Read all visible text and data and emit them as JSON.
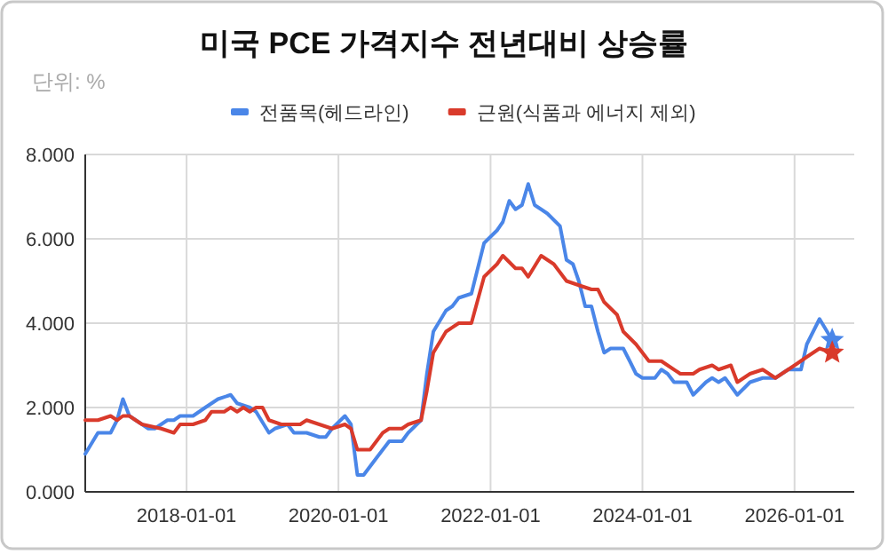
{
  "chart_data": {
    "type": "line",
    "title": "미국 PCE 가격지수 전년대비 상승률",
    "subtitle": "단위: %",
    "series": [
      {
        "name": "전품목(헤드라인)",
        "color": "#4a86e8",
        "x": [
          "2016-09",
          "2016-11",
          "2017-01",
          "2017-02",
          "2017-03",
          "2017-04",
          "2017-06",
          "2017-07",
          "2017-08",
          "2017-10",
          "2017-11",
          "2017-12",
          "2018-02",
          "2018-04",
          "2018-06",
          "2018-08",
          "2018-09",
          "2018-11",
          "2018-12",
          "2019-02",
          "2019-03",
          "2019-05",
          "2019-06",
          "2019-08",
          "2019-10",
          "2019-11",
          "2019-12",
          "2020-02",
          "2020-03",
          "2020-04",
          "2020-05",
          "2020-07",
          "2020-09",
          "2020-11",
          "2020-12",
          "2021-02",
          "2021-03",
          "2021-04",
          "2021-06",
          "2021-07",
          "2021-08",
          "2021-10",
          "2021-12",
          "2022-02",
          "2022-03",
          "2022-04",
          "2022-05",
          "2022-06",
          "2022-07",
          "2022-08",
          "2022-09",
          "2022-10",
          "2022-12",
          "2023-01",
          "2023-02",
          "2023-03",
          "2023-04",
          "2023-05",
          "2023-06",
          "2023-07",
          "2023-08",
          "2023-10",
          "2023-11",
          "2023-12",
          "2024-01",
          "2024-03",
          "2024-04",
          "2024-05",
          "2024-06",
          "2024-08",
          "2024-09",
          "2024-11",
          "2024-12",
          "2025-01",
          "2025-02",
          "2025-04",
          "2025-06",
          "2025-08",
          "2025-10",
          "2025-12",
          "2026-02",
          "2026-03",
          "2026-05",
          "2026-07"
        ],
        "values": [
          0.9,
          1.4,
          1.4,
          1.7,
          2.2,
          1.8,
          1.6,
          1.5,
          1.5,
          1.7,
          1.7,
          1.8,
          1.8,
          2.0,
          2.2,
          2.3,
          2.1,
          2.0,
          1.9,
          1.4,
          1.5,
          1.6,
          1.4,
          1.4,
          1.3,
          1.3,
          1.5,
          1.8,
          1.6,
          0.4,
          0.4,
          0.8,
          1.2,
          1.2,
          1.4,
          1.7,
          2.8,
          3.8,
          4.3,
          4.4,
          4.6,
          4.7,
          5.9,
          6.2,
          6.4,
          6.9,
          6.7,
          6.8,
          7.3,
          6.8,
          6.7,
          6.6,
          6.3,
          5.5,
          5.4,
          5.0,
          4.4,
          4.4,
          3.8,
          3.3,
          3.4,
          3.4,
          3.1,
          2.8,
          2.7,
          2.7,
          2.9,
          2.8,
          2.6,
          2.6,
          2.3,
          2.6,
          2.7,
          2.6,
          2.7,
          2.3,
          2.6,
          2.7,
          2.7,
          2.9,
          2.9,
          3.5,
          4.1,
          3.6
        ]
      },
      {
        "type": "scatter",
        "color": "#4a86e8",
        "marker": "star",
        "x": [
          "2026-07"
        ],
        "values": [
          3.6
        ]
      },
      {
        "type": "scatter",
        "color": "#d93a2b",
        "marker": "star",
        "x": [
          "2026-07"
        ],
        "values": [
          3.3
        ]
      },
      {
        "name": "근원(식품과 에너지 제외)",
        "color": "#d93a2b",
        "x": [
          "2016-09",
          "2016-11",
          "2017-01",
          "2017-02",
          "2017-03",
          "2017-04",
          "2017-05",
          "2017-06",
          "2017-09",
          "2017-11",
          "2017-12",
          "2018-02",
          "2018-04",
          "2018-05",
          "2018-07",
          "2018-08",
          "2018-09",
          "2018-10",
          "2018-11",
          "2018-12",
          "2019-01",
          "2019-02",
          "2019-04",
          "2019-05",
          "2019-07",
          "2019-08",
          "2019-10",
          "2019-12",
          "2020-02",
          "2020-03",
          "2020-04",
          "2020-06",
          "2020-08",
          "2020-09",
          "2020-11",
          "2020-12",
          "2021-02",
          "2021-03",
          "2021-04",
          "2021-06",
          "2021-08",
          "2021-10",
          "2021-12",
          "2022-02",
          "2022-03",
          "2022-05",
          "2022-06",
          "2022-07",
          "2022-09",
          "2022-11",
          "2023-01",
          "2023-03",
          "2023-05",
          "2023-06",
          "2023-07",
          "2023-09",
          "2023-10",
          "2023-12",
          "2024-02",
          "2024-03",
          "2024-04",
          "2024-05",
          "2024-07",
          "2024-09",
          "2024-10",
          "2024-12",
          "2025-01",
          "2025-03",
          "2025-04",
          "2025-06",
          "2025-08",
          "2025-10",
          "2026-01",
          "2026-03",
          "2026-05",
          "2026-07"
        ],
        "values": [
          1.7,
          1.7,
          1.8,
          1.7,
          1.8,
          1.8,
          1.7,
          1.6,
          1.5,
          1.4,
          1.6,
          1.6,
          1.7,
          1.9,
          1.9,
          2.0,
          1.9,
          2.0,
          1.9,
          2.0,
          2.0,
          1.7,
          1.6,
          1.6,
          1.6,
          1.7,
          1.6,
          1.5,
          1.6,
          1.5,
          1.0,
          1.0,
          1.4,
          1.5,
          1.5,
          1.6,
          1.7,
          2.4,
          3.3,
          3.8,
          4.0,
          4.0,
          5.1,
          5.4,
          5.6,
          5.3,
          5.3,
          5.1,
          5.6,
          5.4,
          5.0,
          4.9,
          4.8,
          4.8,
          4.5,
          4.2,
          3.8,
          3.5,
          3.1,
          3.1,
          3.1,
          3.0,
          2.8,
          2.8,
          2.9,
          3.0,
          2.9,
          3.0,
          2.6,
          2.8,
          2.9,
          2.7,
          3.0,
          3.2,
          3.4,
          3.3
        ]
      }
    ],
    "xlim": [
      "2016-09-01",
      "2026-10-15"
    ],
    "xticks": [
      {
        "value": "2018-01-01",
        "label": "2018-01-01"
      },
      {
        "value": "2020-01-01",
        "label": "2020-01-01"
      },
      {
        "value": "2022-01-01",
        "label": "2022-01-01"
      },
      {
        "value": "2024-01-01",
        "label": "2024-01-01"
      },
      {
        "value": "2026-01-01",
        "label": "2026-01-01"
      }
    ],
    "ylim": [
      0,
      8
    ],
    "yticks": [
      {
        "value": 0,
        "label": "0.000"
      },
      {
        "value": 2,
        "label": "2.000"
      },
      {
        "value": 4,
        "label": "4.000"
      },
      {
        "value": 6,
        "label": "6.000"
      },
      {
        "value": 8,
        "label": "8.000"
      }
    ],
    "grid": true,
    "legend": "top",
    "line_style": "solid"
  }
}
